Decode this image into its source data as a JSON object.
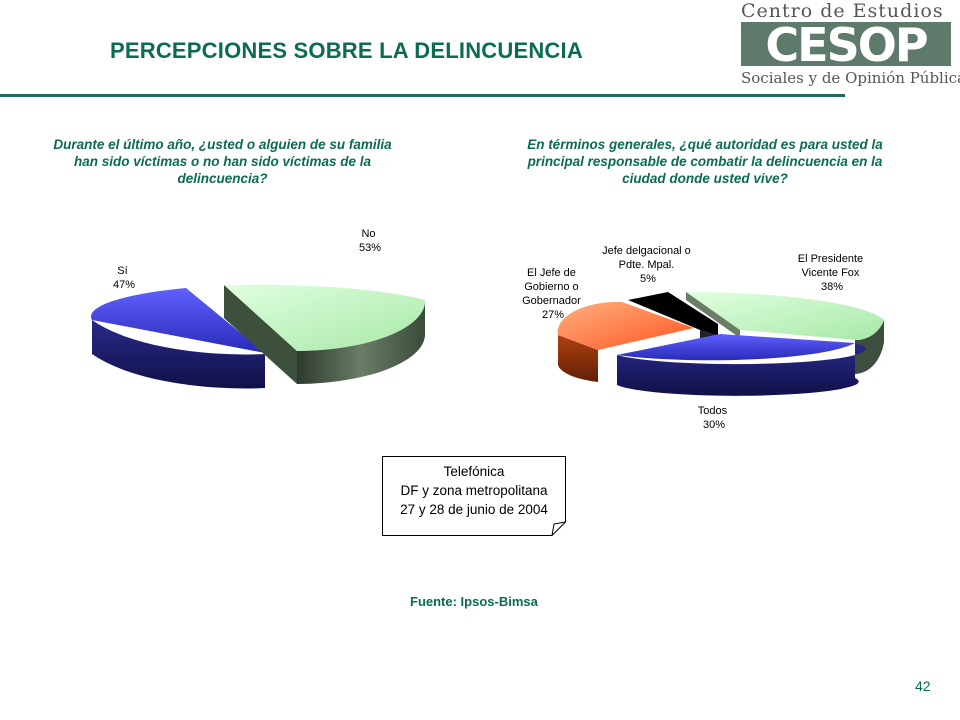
{
  "title": "PERCEPCIONES SOBRE LA DELINCUENCIA",
  "logo": {
    "top_text": "Centro de Estudios",
    "mark_text": "CESOP",
    "bottom_text": "Sociales y de Opinión Pública"
  },
  "chart_data": [
    {
      "type": "pie",
      "title": "Durante el último año, ¿usted o alguien de su familia han sido víctimas o no han sido víctimas de la delincuencia?",
      "categories": [
        "No",
        "Sí"
      ],
      "values": [
        53,
        47
      ],
      "labels": [
        "No 53%",
        "Sí 47%"
      ],
      "colors": [
        "#bff5bf",
        "#4040d8"
      ],
      "legend": "none"
    },
    {
      "type": "pie",
      "title": "En términos generales, ¿qué autoridad es para usted la principal responsable de combatir la delincuencia en la ciudad donde usted vive?",
      "categories": [
        "El Presidente Vicente Fox",
        "Todos",
        "El Jefe de Gobierno o Gobernador",
        "Jefe delgacional o Pdte. Mpal."
      ],
      "values": [
        38,
        30,
        27,
        5
      ],
      "colors": [
        "#bff5bf",
        "#4040d8",
        "#ff7744",
        "#000000"
      ],
      "legend": "none"
    }
  ],
  "labels": {
    "left_no": [
      "No",
      "53%"
    ],
    "left_si": [
      "Sí",
      "47%"
    ],
    "right_fox": [
      "El Presidente",
      "Vicente Fox",
      "38%"
    ],
    "right_todos": [
      "Todos",
      "30%"
    ],
    "right_jefe": [
      "El Jefe de",
      "Gobierno o",
      "Gobernador",
      "27%"
    ],
    "right_delg": [
      "Jefe delgacional o",
      "Pdte. Mpal.",
      "5%"
    ]
  },
  "note": [
    "Telefónica",
    "DF y zona metropolitana",
    "27 y 28 de junio de 2004"
  ],
  "source": "Fuente: Ipsos-Bimsa",
  "page_number": "42"
}
